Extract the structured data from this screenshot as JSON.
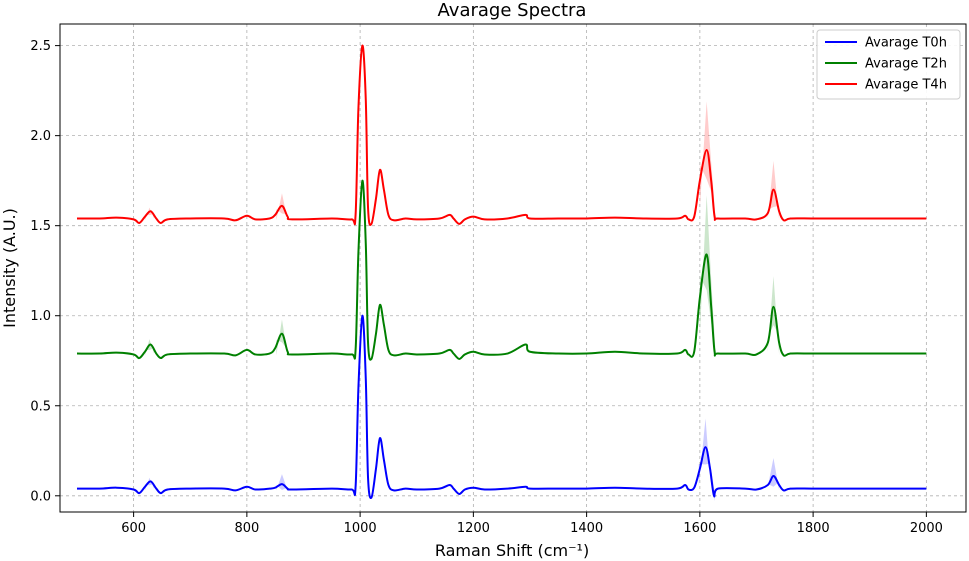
{
  "chart_data": {
    "type": "line",
    "title": "Avarage Spectra",
    "xlabel": "Raman Shift (cm⁻¹)",
    "ylabel": "Intensity (A.U.)",
    "xlim": [
      470,
      2070
    ],
    "ylim": [
      -0.09,
      2.62
    ],
    "xticks": [
      600,
      800,
      1000,
      1200,
      1400,
      1600,
      1800,
      2000
    ],
    "xtick_labels": [
      "600",
      "800",
      "1000",
      "1200",
      "1400",
      "1600",
      "1800",
      "2000"
    ],
    "yticks": [
      0.0,
      0.5,
      1.0,
      1.5,
      2.0,
      2.5
    ],
    "ytick_labels": [
      "0.0",
      "0.5",
      "1.0",
      "1.5",
      "2.0",
      "2.5"
    ],
    "grid": true,
    "legend_position": "top-right",
    "series": [
      {
        "name": "Avarage T0h",
        "color": "#0000ff",
        "points": [
          [
            500,
            0.04
          ],
          [
            540,
            0.04
          ],
          [
            570,
            0.045
          ],
          [
            600,
            0.035
          ],
          [
            610,
            0.015
          ],
          [
            620,
            0.05
          ],
          [
            630,
            0.08
          ],
          [
            640,
            0.04
          ],
          [
            648,
            0.015
          ],
          [
            660,
            0.035
          ],
          [
            700,
            0.04
          ],
          [
            760,
            0.04
          ],
          [
            780,
            0.03
          ],
          [
            800,
            0.05
          ],
          [
            815,
            0.035
          ],
          [
            840,
            0.04
          ],
          [
            850,
            0.045
          ],
          [
            862,
            0.065
          ],
          [
            872,
            0.04
          ],
          [
            880,
            0.035
          ],
          [
            950,
            0.04
          ],
          [
            985,
            0.035
          ],
          [
            992,
            0.05
          ],
          [
            997,
            0.6
          ],
          [
            1004,
            1.0
          ],
          [
            1010,
            0.65
          ],
          [
            1014,
            0.1
          ],
          [
            1020,
            -0.01
          ],
          [
            1028,
            0.15
          ],
          [
            1035,
            0.32
          ],
          [
            1042,
            0.2
          ],
          [
            1050,
            0.06
          ],
          [
            1060,
            0.03
          ],
          [
            1080,
            0.04
          ],
          [
            1100,
            0.035
          ],
          [
            1140,
            0.04
          ],
          [
            1158,
            0.06
          ],
          [
            1165,
            0.04
          ],
          [
            1175,
            0.01
          ],
          [
            1185,
            0.035
          ],
          [
            1200,
            0.045
          ],
          [
            1220,
            0.035
          ],
          [
            1260,
            0.04
          ],
          [
            1292,
            0.05
          ],
          [
            1300,
            0.04
          ],
          [
            1350,
            0.04
          ],
          [
            1400,
            0.04
          ],
          [
            1450,
            0.045
          ],
          [
            1500,
            0.04
          ],
          [
            1560,
            0.04
          ],
          [
            1574,
            0.06
          ],
          [
            1580,
            0.035
          ],
          [
            1590,
            0.045
          ],
          [
            1600,
            0.15
          ],
          [
            1610,
            0.27
          ],
          [
            1618,
            0.15
          ],
          [
            1625,
            0.0
          ],
          [
            1632,
            0.04
          ],
          [
            1680,
            0.04
          ],
          [
            1700,
            0.035
          ],
          [
            1720,
            0.06
          ],
          [
            1730,
            0.11
          ],
          [
            1740,
            0.06
          ],
          [
            1748,
            0.03
          ],
          [
            1760,
            0.04
          ],
          [
            1800,
            0.04
          ],
          [
            1850,
            0.04
          ],
          [
            1900,
            0.04
          ],
          [
            2000,
            0.04
          ]
        ],
        "band": [
          [
            620,
            0.03
          ],
          [
            628,
            0.1
          ],
          [
            636,
            0.04
          ],
          [
            852,
            0.03
          ],
          [
            862,
            0.12
          ],
          [
            872,
            0.03
          ],
          [
            1598,
            0.05
          ],
          [
            1610,
            0.43
          ],
          [
            1618,
            0.1
          ],
          [
            1626,
            -0.03
          ],
          [
            1720,
            0.05
          ],
          [
            1730,
            0.21
          ],
          [
            1740,
            0.03
          ]
        ]
      },
      {
        "name": "Avarage T2h",
        "color": "#008000",
        "points": [
          [
            500,
            0.79
          ],
          [
            540,
            0.79
          ],
          [
            570,
            0.795
          ],
          [
            600,
            0.785
          ],
          [
            610,
            0.765
          ],
          [
            620,
            0.8
          ],
          [
            630,
            0.84
          ],
          [
            640,
            0.79
          ],
          [
            648,
            0.765
          ],
          [
            660,
            0.785
          ],
          [
            700,
            0.79
          ],
          [
            760,
            0.79
          ],
          [
            780,
            0.78
          ],
          [
            800,
            0.81
          ],
          [
            815,
            0.785
          ],
          [
            840,
            0.79
          ],
          [
            850,
            0.82
          ],
          [
            862,
            0.9
          ],
          [
            872,
            0.8
          ],
          [
            880,
            0.785
          ],
          [
            950,
            0.79
          ],
          [
            985,
            0.785
          ],
          [
            992,
            0.81
          ],
          [
            997,
            1.35
          ],
          [
            1004,
            1.75
          ],
          [
            1010,
            1.4
          ],
          [
            1014,
            0.85
          ],
          [
            1020,
            0.76
          ],
          [
            1028,
            0.9
          ],
          [
            1035,
            1.06
          ],
          [
            1042,
            0.95
          ],
          [
            1050,
            0.81
          ],
          [
            1060,
            0.78
          ],
          [
            1080,
            0.79
          ],
          [
            1100,
            0.785
          ],
          [
            1140,
            0.79
          ],
          [
            1158,
            0.81
          ],
          [
            1165,
            0.79
          ],
          [
            1175,
            0.76
          ],
          [
            1185,
            0.785
          ],
          [
            1200,
            0.8
          ],
          [
            1220,
            0.785
          ],
          [
            1260,
            0.79
          ],
          [
            1292,
            0.84
          ],
          [
            1300,
            0.8
          ],
          [
            1350,
            0.79
          ],
          [
            1400,
            0.79
          ],
          [
            1450,
            0.8
          ],
          [
            1500,
            0.79
          ],
          [
            1560,
            0.79
          ],
          [
            1574,
            0.81
          ],
          [
            1580,
            0.785
          ],
          [
            1590,
            0.8
          ],
          [
            1600,
            1.1
          ],
          [
            1612,
            1.34
          ],
          [
            1620,
            1.05
          ],
          [
            1626,
            0.8
          ],
          [
            1632,
            0.79
          ],
          [
            1680,
            0.79
          ],
          [
            1700,
            0.785
          ],
          [
            1720,
            0.85
          ],
          [
            1730,
            1.05
          ],
          [
            1740,
            0.85
          ],
          [
            1748,
            0.78
          ],
          [
            1760,
            0.79
          ],
          [
            1800,
            0.79
          ],
          [
            1850,
            0.79
          ],
          [
            1900,
            0.79
          ],
          [
            2000,
            0.79
          ]
        ],
        "band": [
          [
            620,
            0.78
          ],
          [
            628,
            0.87
          ],
          [
            636,
            0.79
          ],
          [
            852,
            0.78
          ],
          [
            862,
            0.98
          ],
          [
            872,
            0.78
          ],
          [
            1600,
            0.9
          ],
          [
            1612,
            1.67
          ],
          [
            1620,
            1.2
          ],
          [
            1628,
            0.78
          ],
          [
            1720,
            0.8
          ],
          [
            1730,
            1.22
          ],
          [
            1740,
            0.78
          ]
        ]
      },
      {
        "name": "Avarage T4h",
        "color": "#ff0000",
        "points": [
          [
            500,
            1.54
          ],
          [
            540,
            1.54
          ],
          [
            570,
            1.545
          ],
          [
            600,
            1.535
          ],
          [
            610,
            1.515
          ],
          [
            620,
            1.55
          ],
          [
            630,
            1.58
          ],
          [
            640,
            1.54
          ],
          [
            648,
            1.515
          ],
          [
            660,
            1.535
          ],
          [
            700,
            1.54
          ],
          [
            760,
            1.54
          ],
          [
            780,
            1.53
          ],
          [
            800,
            1.555
          ],
          [
            815,
            1.535
          ],
          [
            840,
            1.54
          ],
          [
            850,
            1.56
          ],
          [
            862,
            1.61
          ],
          [
            872,
            1.55
          ],
          [
            880,
            1.535
          ],
          [
            950,
            1.54
          ],
          [
            985,
            1.535
          ],
          [
            992,
            1.56
          ],
          [
            997,
            2.15
          ],
          [
            1004,
            2.5
          ],
          [
            1010,
            2.2
          ],
          [
            1014,
            1.6
          ],
          [
            1020,
            1.51
          ],
          [
            1028,
            1.65
          ],
          [
            1035,
            1.81
          ],
          [
            1042,
            1.7
          ],
          [
            1050,
            1.56
          ],
          [
            1060,
            1.53
          ],
          [
            1080,
            1.54
          ],
          [
            1100,
            1.535
          ],
          [
            1140,
            1.54
          ],
          [
            1158,
            1.56
          ],
          [
            1165,
            1.54
          ],
          [
            1175,
            1.51
          ],
          [
            1185,
            1.535
          ],
          [
            1200,
            1.55
          ],
          [
            1220,
            1.535
          ],
          [
            1260,
            1.54
          ],
          [
            1292,
            1.56
          ],
          [
            1300,
            1.54
          ],
          [
            1350,
            1.54
          ],
          [
            1400,
            1.54
          ],
          [
            1450,
            1.545
          ],
          [
            1500,
            1.54
          ],
          [
            1560,
            1.54
          ],
          [
            1574,
            1.555
          ],
          [
            1580,
            1.535
          ],
          [
            1590,
            1.55
          ],
          [
            1600,
            1.75
          ],
          [
            1612,
            1.92
          ],
          [
            1620,
            1.75
          ],
          [
            1626,
            1.55
          ],
          [
            1632,
            1.54
          ],
          [
            1680,
            1.54
          ],
          [
            1700,
            1.535
          ],
          [
            1720,
            1.57
          ],
          [
            1730,
            1.7
          ],
          [
            1740,
            1.58
          ],
          [
            1748,
            1.53
          ],
          [
            1760,
            1.54
          ],
          [
            1800,
            1.54
          ],
          [
            1850,
            1.54
          ],
          [
            1900,
            1.54
          ],
          [
            2000,
            1.54
          ]
        ],
        "band": [
          [
            620,
            1.53
          ],
          [
            628,
            1.6
          ],
          [
            636,
            1.54
          ],
          [
            852,
            1.53
          ],
          [
            862,
            1.68
          ],
          [
            872,
            1.53
          ],
          [
            1600,
            1.6
          ],
          [
            1612,
            2.19
          ],
          [
            1620,
            1.85
          ],
          [
            1628,
            1.53
          ],
          [
            1720,
            1.54
          ],
          [
            1730,
            1.86
          ],
          [
            1740,
            1.53
          ]
        ]
      }
    ]
  }
}
